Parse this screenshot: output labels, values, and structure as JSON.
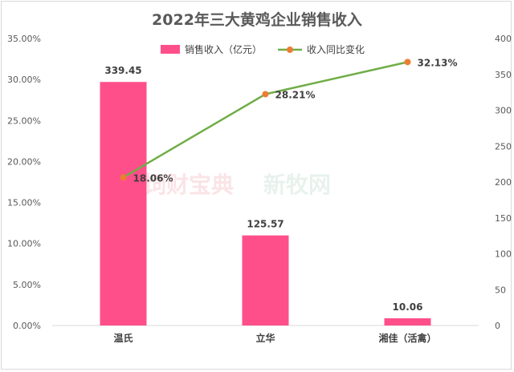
{
  "chart_data": {
    "type": "bar+line",
    "title": "2022年三大黄鸡企业销售收入",
    "categories": [
      "温氏",
      "立华",
      "湘佳（活禽）"
    ],
    "series": [
      {
        "name": "销售收入（亿元）",
        "type": "bar",
        "axis": "right",
        "values": [
          339.45,
          125.57,
          10.06
        ],
        "labels": [
          "339.45",
          "125.57",
          "10.06"
        ],
        "color": "#ff4f8b"
      },
      {
        "name": "收入同比变化",
        "type": "line",
        "axis": "left",
        "values": [
          18.06,
          28.21,
          32.13
        ],
        "labels": [
          "18.06%",
          "28.21%",
          "32.13%"
        ],
        "color": "#70ad47",
        "marker_color": "#ed7d31"
      }
    ],
    "y_left": {
      "ylim": [
        0,
        35
      ],
      "ticks": [
        "0.00%",
        "5.00%",
        "10.00%",
        "15.00%",
        "20.00%",
        "25.00%",
        "30.00%",
        "35.00%"
      ]
    },
    "y_right": {
      "ylim": [
        0,
        400
      ],
      "ticks": [
        "0",
        "50",
        "100",
        "150",
        "200",
        "250",
        "300",
        "350",
        "400"
      ]
    },
    "legend_position": "top",
    "grid": false
  },
  "watermarks": [
    "饲财宝典",
    "新牧网"
  ]
}
